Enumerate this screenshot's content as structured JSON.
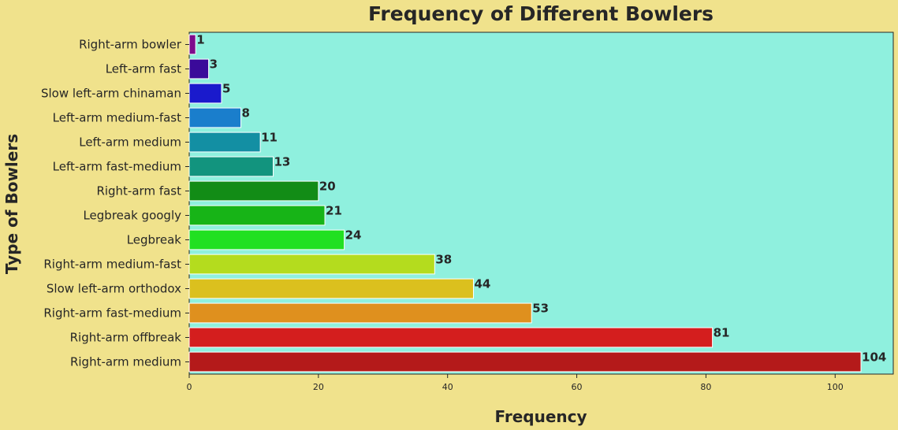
{
  "chart_data": {
    "type": "bar",
    "orientation": "horizontal",
    "title": "Frequency of Different Bowlers",
    "xlabel": "Frequency",
    "ylabel": "Type of Bowlers",
    "categories": [
      "Right-arm bowler",
      "Left-arm fast",
      "Slow left-arm chinaman",
      "Left-arm medium-fast",
      "Left-arm medium",
      "Left-arm fast-medium",
      "Right-arm fast",
      "Legbreak googly",
      "Legbreak",
      "Right-arm medium-fast",
      "Slow left-arm orthodox",
      "Right-arm fast-medium",
      "Right-arm offbreak",
      "Right-arm medium"
    ],
    "values": [
      1,
      3,
      5,
      8,
      11,
      13,
      20,
      21,
      24,
      38,
      44,
      53,
      81,
      104
    ],
    "value_labels": [
      "1",
      "3",
      "5",
      "8",
      "11",
      "13",
      "20",
      "21",
      "24",
      "38",
      "44",
      "53",
      "81",
      "104"
    ],
    "xlim": [
      0,
      109
    ],
    "xticks": [
      0,
      20,
      40,
      60,
      80,
      100
    ],
    "xtick_labels": [
      "0",
      "20",
      "40",
      "60",
      "80",
      "100"
    ],
    "grid": false,
    "legend": "none",
    "colors": {
      "page_background": "#f0e28c",
      "plot_background": "#8ff0de",
      "bars": [
        "#7e0c8c",
        "#3a0a9a",
        "#1a1acc",
        "#1a7ecc",
        "#138fa3",
        "#12947e",
        "#128c16",
        "#17b417",
        "#21e021",
        "#b4dc1e",
        "#dbc01e",
        "#df901e",
        "#d41e1e",
        "#b41a1a"
      ]
    }
  }
}
